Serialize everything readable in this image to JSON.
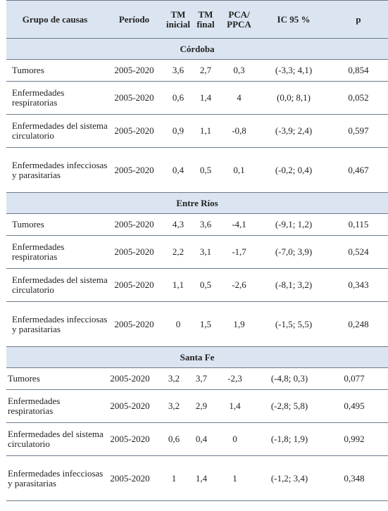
{
  "headers": [
    "Grupo de causas",
    "Período",
    "TM inicial",
    "TM final",
    "PCA/ PPCA",
    "IC 95 %",
    "p"
  ],
  "groups": [
    {
      "name": "Córdoba",
      "rows": [
        {
          "cause": "Tumores",
          "period": "2005-2020",
          "tmi": "3,6",
          "tmf": "2,7",
          "pca": "0,3",
          "ic": "(-3,3; 4,1)",
          "p": "0,854"
        },
        {
          "cause": "Enfermedades respiratorias",
          "period": "2005-2020",
          "tmi": "0,6",
          "tmf": "1,4",
          "pca": "4",
          "ic": "(0,0; 8,1)",
          "p": "0,052"
        },
        {
          "cause": "Enfermedades del sistema circulatorio",
          "period": "2005-2020",
          "tmi": "0,9",
          "tmf": "1,1",
          "pca": "-0,8",
          "ic": "(-3,9; 2,4)",
          "p": "0,597"
        },
        {
          "cause": "Enfermedades infecciosas y parasitarias",
          "period": "2005-2020",
          "tmi": "0,4",
          "tmf": "0,5",
          "pca": "0,1",
          "ic": "(-0,2; 0,4)",
          "p": "0,467"
        }
      ]
    },
    {
      "name": "Entre Ríos",
      "rows": [
        {
          "cause": "Tumores",
          "period": "2005-2020",
          "tmi": "4,3",
          "tmf": "3,6",
          "pca": "-4,1",
          "ic": "(-9,1; 1,2)",
          "p": "0,115"
        },
        {
          "cause": "Enfermedades respiratorias",
          "period": "2005-2020",
          "tmi": "2,2",
          "tmf": "3,1",
          "pca": "-1,7",
          "ic": "(-7,0; 3,9)",
          "p": "0,524"
        },
        {
          "cause": "Enfermedades del sistema circulatorio",
          "period": "2005-2020",
          "tmi": "1,1",
          "tmf": "0,5",
          "pca": "-2,6",
          "ic": "(-8,1; 3,2)",
          "p": "0,343"
        },
        {
          "cause": "Enfermedades infecciosas y parasitarias",
          "period": "2005-2020",
          "tmi": "0",
          "tmf": "1,5",
          "pca": "1,9",
          "ic": "(-1,5; 5,5)",
          "p": "0,248"
        }
      ]
    },
    {
      "name": "Santa Fe",
      "rows": [
        {
          "cause": "Tumores",
          "period": "2005-2020",
          "tmi": "3,2",
          "tmf": "3,7",
          "pca": "-2,3",
          "ic": "(-4,8; 0,3)",
          "p": "0,077"
        },
        {
          "cause": "Enfermedades respiratorias",
          "period": "2005-2020",
          "tmi": "3,2",
          "tmf": "2,9",
          "pca": "1,4",
          "ic": "(-2,8; 5,8)",
          "p": "0,495"
        },
        {
          "cause": "Enfermedades del sistema circulatorio",
          "period": "2005-2020",
          "tmi": "0,6",
          "tmf": "0,4",
          "pca": "0",
          "ic": "(-1,8; 1,9)",
          "p": "0,992"
        },
        {
          "cause": "Enfermedades infecciosas y parasitarias",
          "period": "2005-2020",
          "tmi": "1",
          "tmf": "1,4",
          "pca": "1",
          "ic": "(-1,2; 3,4)",
          "p": "0,348"
        }
      ]
    }
  ]
}
